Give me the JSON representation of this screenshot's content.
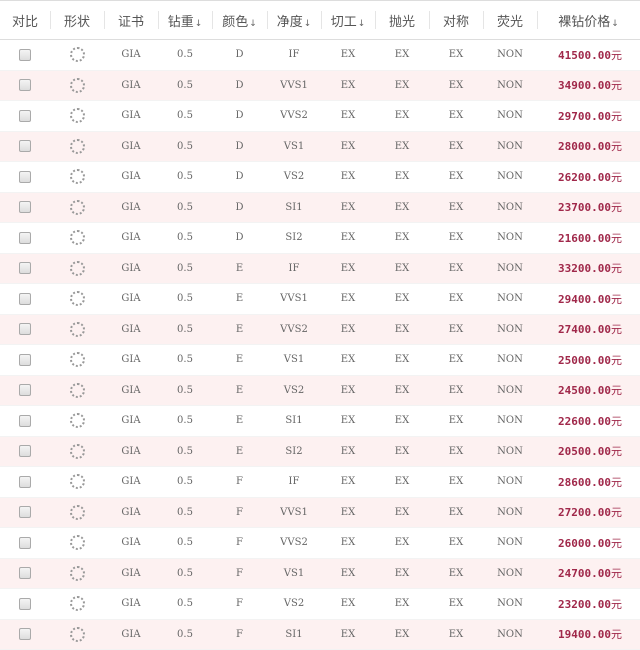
{
  "headers": [
    {
      "label": "对比",
      "sort": false
    },
    {
      "label": "形状",
      "sort": false
    },
    {
      "label": "证书",
      "sort": false
    },
    {
      "label": "钻重",
      "sort": true
    },
    {
      "label": "颜色",
      "sort": true
    },
    {
      "label": "净度",
      "sort": true
    },
    {
      "label": "切工",
      "sort": true
    },
    {
      "label": "抛光",
      "sort": false
    },
    {
      "label": "对称",
      "sort": false
    },
    {
      "label": "荧光",
      "sort": false
    },
    {
      "label": "裸钻价格",
      "sort": true
    }
  ],
  "currency": "元",
  "shape_icon": "round-diamond-icon",
  "accent_color": "#a0284a",
  "rows": [
    [
      "GIA",
      "0.5",
      "D",
      "IF",
      "EX",
      "EX",
      "EX",
      "NON",
      "41500.00"
    ],
    [
      "GIA",
      "0.5",
      "D",
      "VVS1",
      "EX",
      "EX",
      "EX",
      "NON",
      "34900.00"
    ],
    [
      "GIA",
      "0.5",
      "D",
      "VVS2",
      "EX",
      "EX",
      "EX",
      "NON",
      "29700.00"
    ],
    [
      "GIA",
      "0.5",
      "D",
      "VS1",
      "EX",
      "EX",
      "EX",
      "NON",
      "28000.00"
    ],
    [
      "GIA",
      "0.5",
      "D",
      "VS2",
      "EX",
      "EX",
      "EX",
      "NON",
      "26200.00"
    ],
    [
      "GIA",
      "0.5",
      "D",
      "SI1",
      "EX",
      "EX",
      "EX",
      "NON",
      "23700.00"
    ],
    [
      "GIA",
      "0.5",
      "D",
      "SI2",
      "EX",
      "EX",
      "EX",
      "NON",
      "21600.00"
    ],
    [
      "GIA",
      "0.5",
      "E",
      "IF",
      "EX",
      "EX",
      "EX",
      "NON",
      "33200.00"
    ],
    [
      "GIA",
      "0.5",
      "E",
      "VVS1",
      "EX",
      "EX",
      "EX",
      "NON",
      "29400.00"
    ],
    [
      "GIA",
      "0.5",
      "E",
      "VVS2",
      "EX",
      "EX",
      "EX",
      "NON",
      "27400.00"
    ],
    [
      "GIA",
      "0.5",
      "E",
      "VS1",
      "EX",
      "EX",
      "EX",
      "NON",
      "25000.00"
    ],
    [
      "GIA",
      "0.5",
      "E",
      "VS2",
      "EX",
      "EX",
      "EX",
      "NON",
      "24500.00"
    ],
    [
      "GIA",
      "0.5",
      "E",
      "SI1",
      "EX",
      "EX",
      "EX",
      "NON",
      "22600.00"
    ],
    [
      "GIA",
      "0.5",
      "E",
      "SI2",
      "EX",
      "EX",
      "EX",
      "NON",
      "20500.00"
    ],
    [
      "GIA",
      "0.5",
      "F",
      "IF",
      "EX",
      "EX",
      "EX",
      "NON",
      "28600.00"
    ],
    [
      "GIA",
      "0.5",
      "F",
      "VVS1",
      "EX",
      "EX",
      "EX",
      "NON",
      "27200.00"
    ],
    [
      "GIA",
      "0.5",
      "F",
      "VVS2",
      "EX",
      "EX",
      "EX",
      "NON",
      "26000.00"
    ],
    [
      "GIA",
      "0.5",
      "F",
      "VS1",
      "EX",
      "EX",
      "EX",
      "NON",
      "24700.00"
    ],
    [
      "GIA",
      "0.5",
      "F",
      "VS2",
      "EX",
      "EX",
      "EX",
      "NON",
      "23200.00"
    ],
    [
      "GIA",
      "0.5",
      "F",
      "SI1",
      "EX",
      "EX",
      "EX",
      "NON",
      "19400.00"
    ]
  ]
}
